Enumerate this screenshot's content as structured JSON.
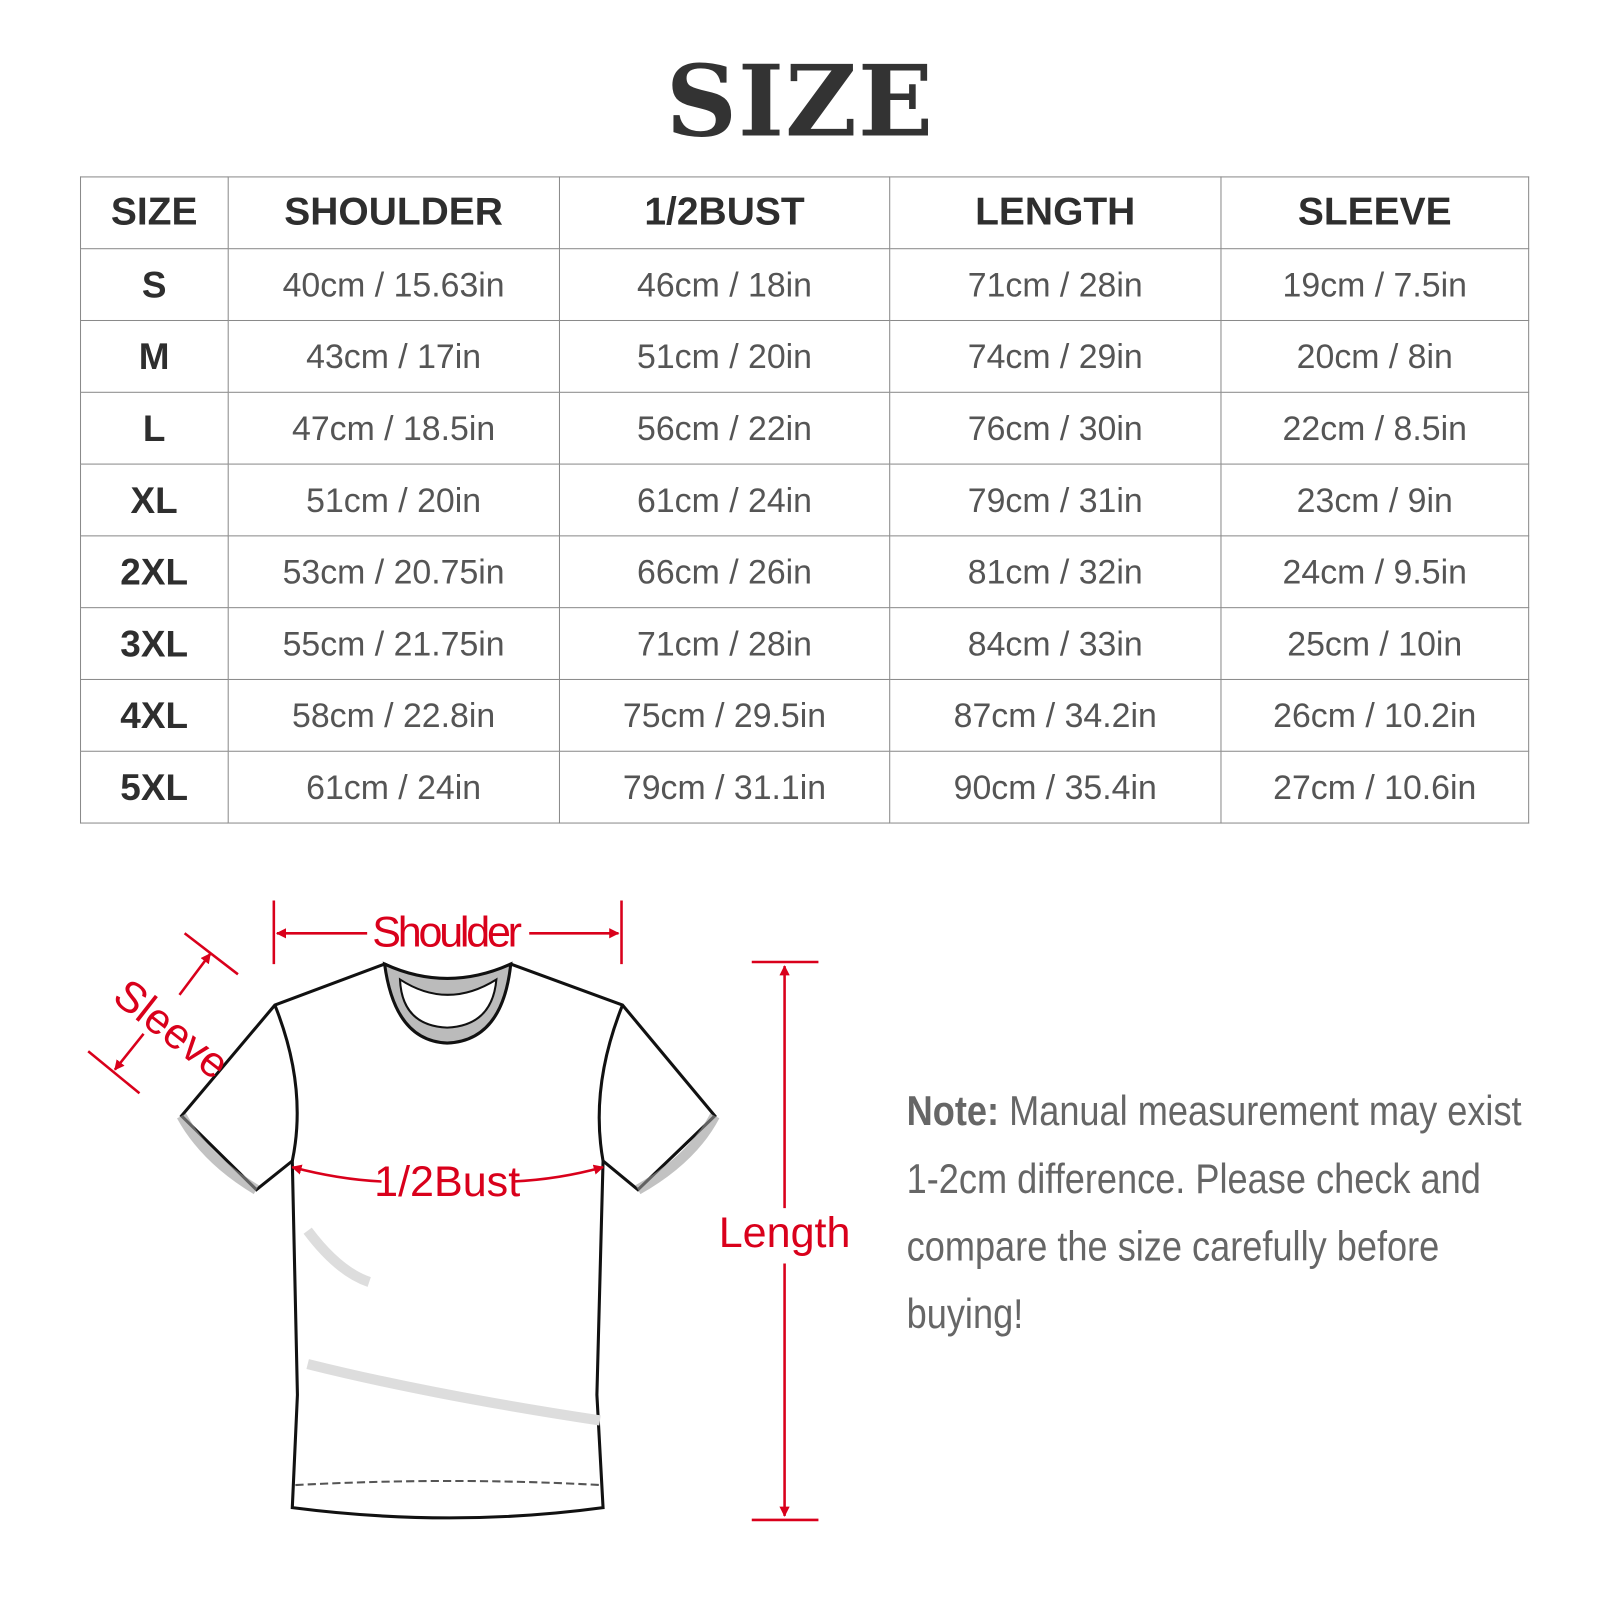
{
  "title": "SIZE",
  "table": {
    "headers": [
      "SIZE",
      "SHOULDER",
      "1/2BUST",
      "LENGTH",
      "SLEEVE"
    ],
    "rows": [
      [
        "S",
        "40cm / 15.63in",
        "46cm / 18in",
        "71cm / 28in",
        "19cm / 7.5in"
      ],
      [
        "M",
        "43cm / 17in",
        "51cm / 20in",
        "74cm / 29in",
        "20cm / 8in"
      ],
      [
        "L",
        "47cm / 18.5in",
        "56cm / 22in",
        "76cm / 30in",
        "22cm / 8.5in"
      ],
      [
        "XL",
        "51cm / 20in",
        "61cm / 24in",
        "79cm / 31in",
        "23cm / 9in"
      ],
      [
        "2XL",
        "53cm / 20.75in",
        "66cm / 26in",
        "81cm / 32in",
        "24cm / 9.5in"
      ],
      [
        "3XL",
        "55cm / 21.75in",
        "71cm / 28in",
        "84cm / 33in",
        "25cm / 10in"
      ],
      [
        "4XL",
        "58cm / 22.8in",
        "75cm / 29.5in",
        "87cm / 34.2in",
        "26cm / 10.2in"
      ],
      [
        "5XL",
        "61cm / 24in",
        "79cm / 31.1in",
        "90cm / 35.4in",
        "27cm / 10.6in"
      ]
    ]
  },
  "diagram": {
    "shoulder": "Shoulder",
    "sleeve": "Sleeve",
    "bust": "1/2Bust",
    "length": "Length",
    "accent_color": "#d9001b"
  },
  "note": {
    "label": "Note:",
    "text": " Manual measurement may exist 1-2cm difference. Please check and compare the size carefully before buying!"
  }
}
